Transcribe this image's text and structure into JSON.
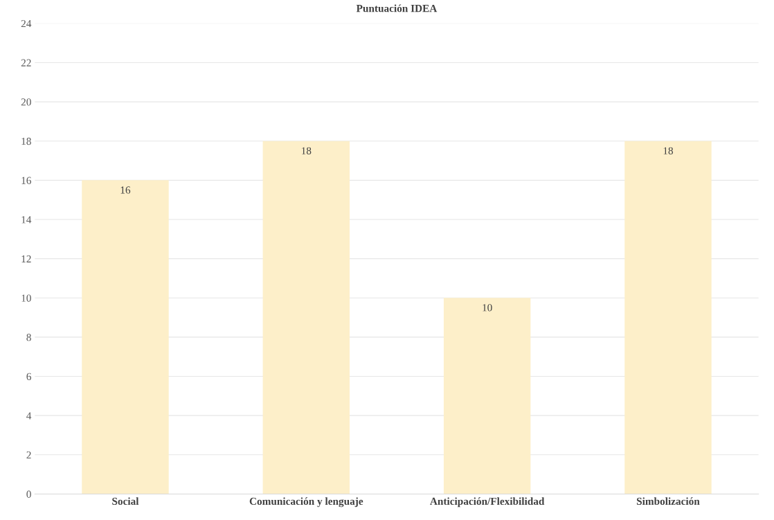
{
  "chart_data": {
    "type": "bar",
    "title": "Puntuación IDEA",
    "categories": [
      "Social",
      "Comunicación y lenguaje",
      "Anticipación/Flexibilidad",
      "Simbolización"
    ],
    "values": [
      16,
      18,
      10,
      18
    ],
    "color": "#fdefc9",
    "ylim": [
      0,
      24
    ],
    "yticks": [
      0,
      2,
      4,
      6,
      8,
      10,
      12,
      14,
      16,
      18,
      20,
      22,
      24
    ],
    "grid": "y",
    "data_labels": true
  }
}
